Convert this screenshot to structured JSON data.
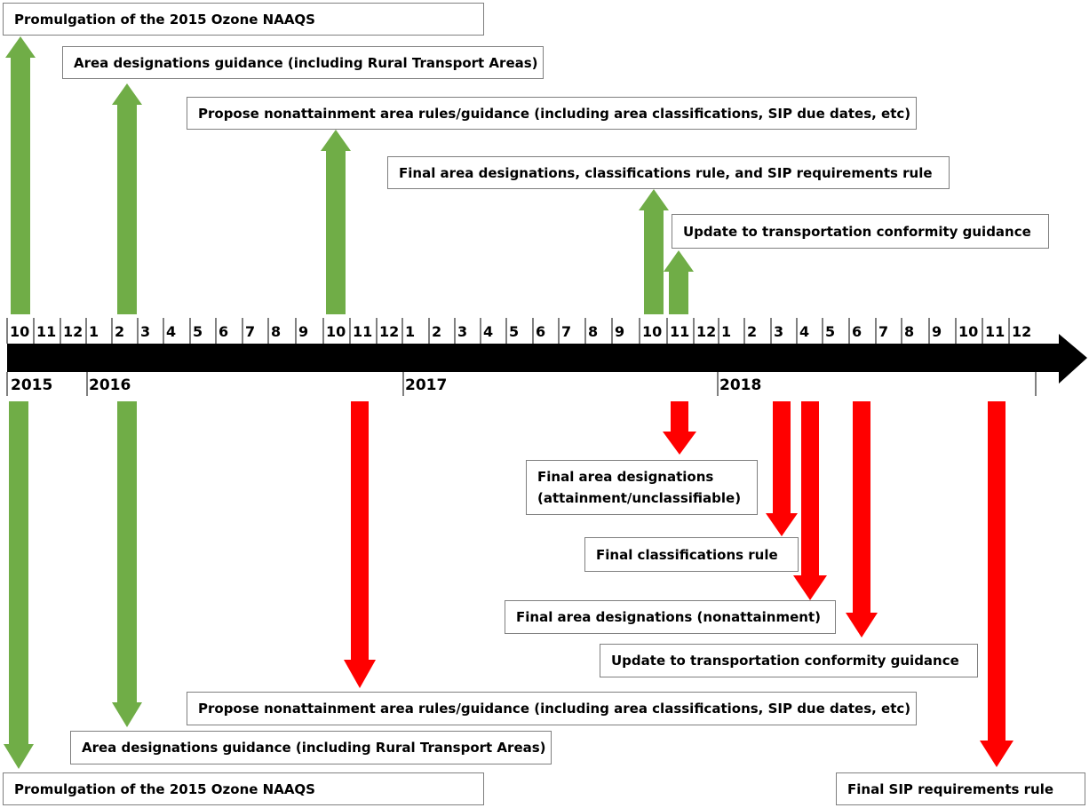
{
  "colors": {
    "green": "#70ad47",
    "red": "#ff0000",
    "axis": "#000000"
  },
  "month_labels": [
    "10",
    "11",
    "12",
    "1",
    "2",
    "3",
    "4",
    "5",
    "6",
    "7",
    "8",
    "9",
    "10",
    "11",
    "12",
    "1",
    "2",
    "3",
    "4",
    "5",
    "6",
    "7",
    "8",
    "9",
    "10",
    "11",
    "12",
    "1",
    "2",
    "3",
    "4",
    "5",
    "6",
    "7",
    "8",
    "9",
    "10",
    "11",
    "12"
  ],
  "year_labels": [
    "2015",
    "2016",
    "2017",
    "2018"
  ],
  "top_events": [
    {
      "label": "Promulgation of the 2015 Ozone NAAQS",
      "month_index": 0
    },
    {
      "label": "Area designations guidance (including Rural Transport Areas)",
      "month_index": 4
    },
    {
      "label": "Propose nonattainment area rules/guidance (including area classifications, SIP due dates, etc)",
      "month_index": 12
    },
    {
      "label": "Final area designations, classifications rule, and SIP requirements rule",
      "month_index": 24
    },
    {
      "label": "Update to transportation conformity guidance",
      "month_index": 25
    }
  ],
  "bottom_events": [
    {
      "label": "Promulgation of the 2015 Ozone NAAQS",
      "month_index": 0
    },
    {
      "label": "Area designations guidance (including Rural Transport Areas)",
      "month_index": 4
    },
    {
      "label": "Propose nonattainment area rules/guidance (including area classifications, SIP due dates, etc)",
      "month_index": 13
    },
    {
      "label": "Final area designations (attainment/unclassifiable)",
      "label_lines": [
        "Final area designations",
        "(attainment/unclassifiable)"
      ],
      "month_index": 25
    },
    {
      "label": "Final classifications rule",
      "month_index": 29
    },
    {
      "label": "Final area designations (nonattainment)",
      "month_index": 30
    },
    {
      "label": "Update to transportation conformity guidance",
      "month_index": 32
    },
    {
      "label": "Final SIP requirements rule",
      "month_index": 37
    }
  ]
}
